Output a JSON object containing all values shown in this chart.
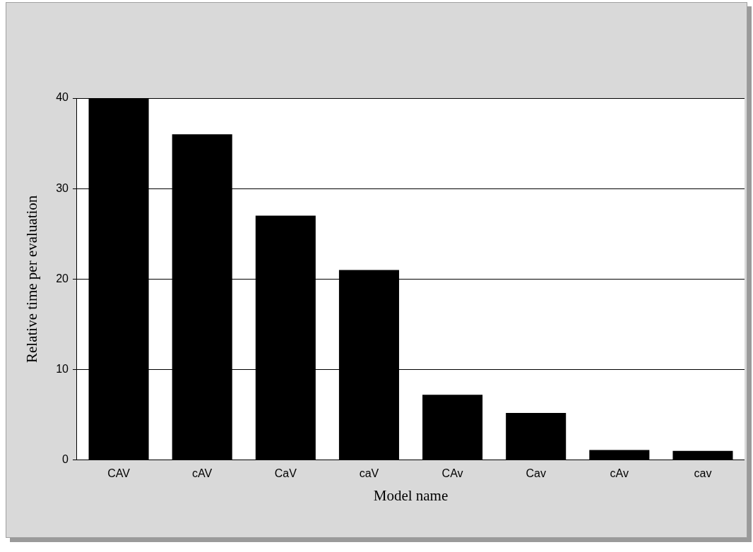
{
  "chart_data": {
    "type": "bar",
    "xlabel": "Model name",
    "ylabel": "Relative time per evaluation",
    "categories": [
      "CAV",
      "cAV",
      "CaV",
      "caV",
      "CAv",
      "Cav",
      "cAv",
      "cav"
    ],
    "values": [
      40,
      36,
      27,
      21,
      7.2,
      5.2,
      1.1,
      1.0
    ],
    "color": "#000000",
    "ylim": [
      0,
      40
    ],
    "yticks": [
      0,
      10,
      20,
      30,
      40
    ],
    "grid": "y"
  }
}
